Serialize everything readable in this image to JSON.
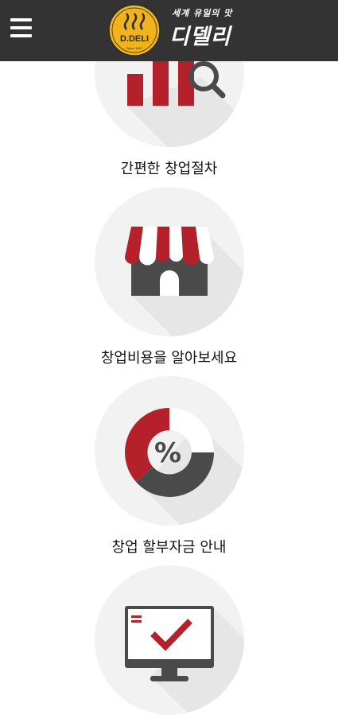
{
  "header": {
    "brand_en": "D.DELI",
    "brand_small": "Since 1997",
    "tagline": "세계 유일의 맛",
    "brand_kr": "디델리"
  },
  "colors": {
    "header_bg": "#333333",
    "accent_red": "#b5212b",
    "dark_gray": "#4a4a4a",
    "circle_bg": "#f2f2f2",
    "logo_yellow": "#f0b31c"
  },
  "items": [
    {
      "label": "간편한 창업절차",
      "icon": "bar-chart-search-icon"
    },
    {
      "label": "창업비용을 알아보세요",
      "icon": "storefront-icon"
    },
    {
      "label": "창업 할부자금 안내",
      "icon": "percent-donut-icon"
    },
    {
      "label": "",
      "icon": "monitor-checkmark-icon"
    }
  ]
}
